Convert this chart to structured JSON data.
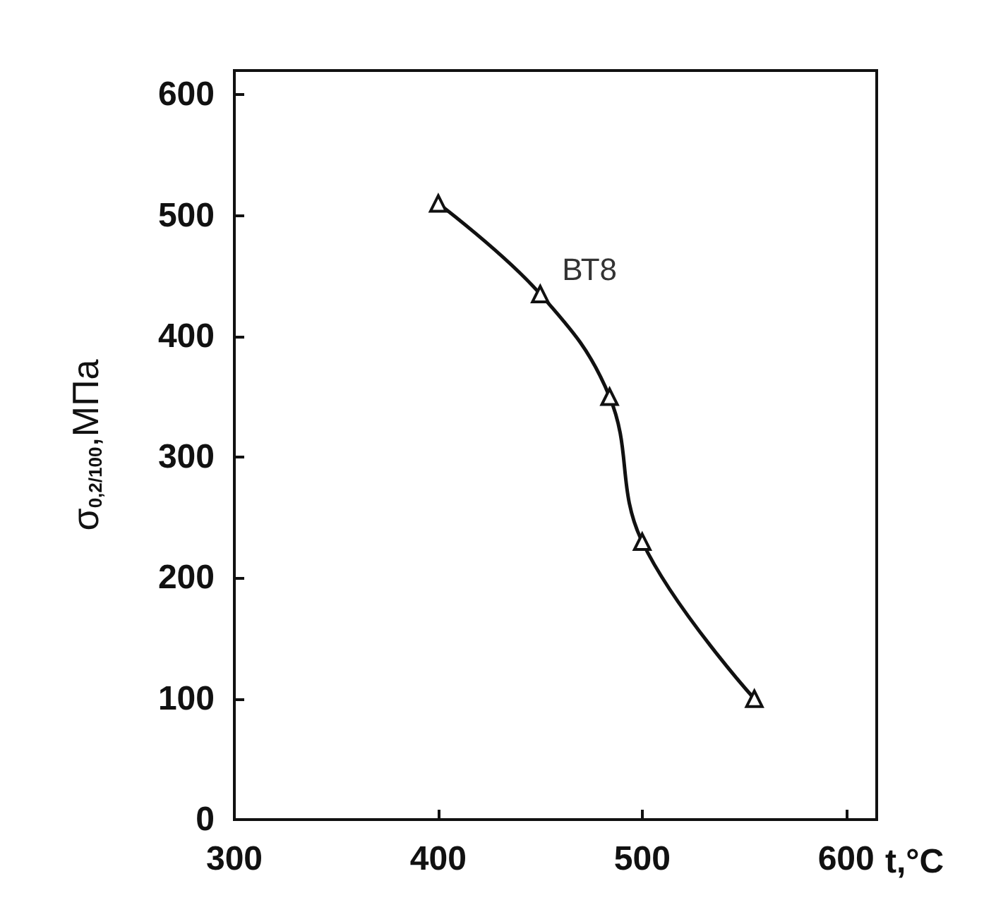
{
  "chart_data": {
    "type": "line",
    "xlabel": "t,°C",
    "ylabel": "σ$_{0,2/100}$,МПа",
    "x": [
      400,
      450,
      484,
      500,
      555
    ],
    "series": [
      {
        "name": "ВТ8",
        "color": "#111111",
        "values": [
          510,
          435,
          350,
          230,
          100
        ]
      }
    ],
    "xlim": [
      300,
      615
    ],
    "xticks": [
      300,
      400,
      500,
      600
    ],
    "ylim": [
      0,
      620
    ],
    "yticks": [
      0,
      100,
      200,
      300,
      400,
      500,
      600
    ],
    "grid": false,
    "legend": false,
    "marker": "triangle",
    "line_style": "solid"
  }
}
